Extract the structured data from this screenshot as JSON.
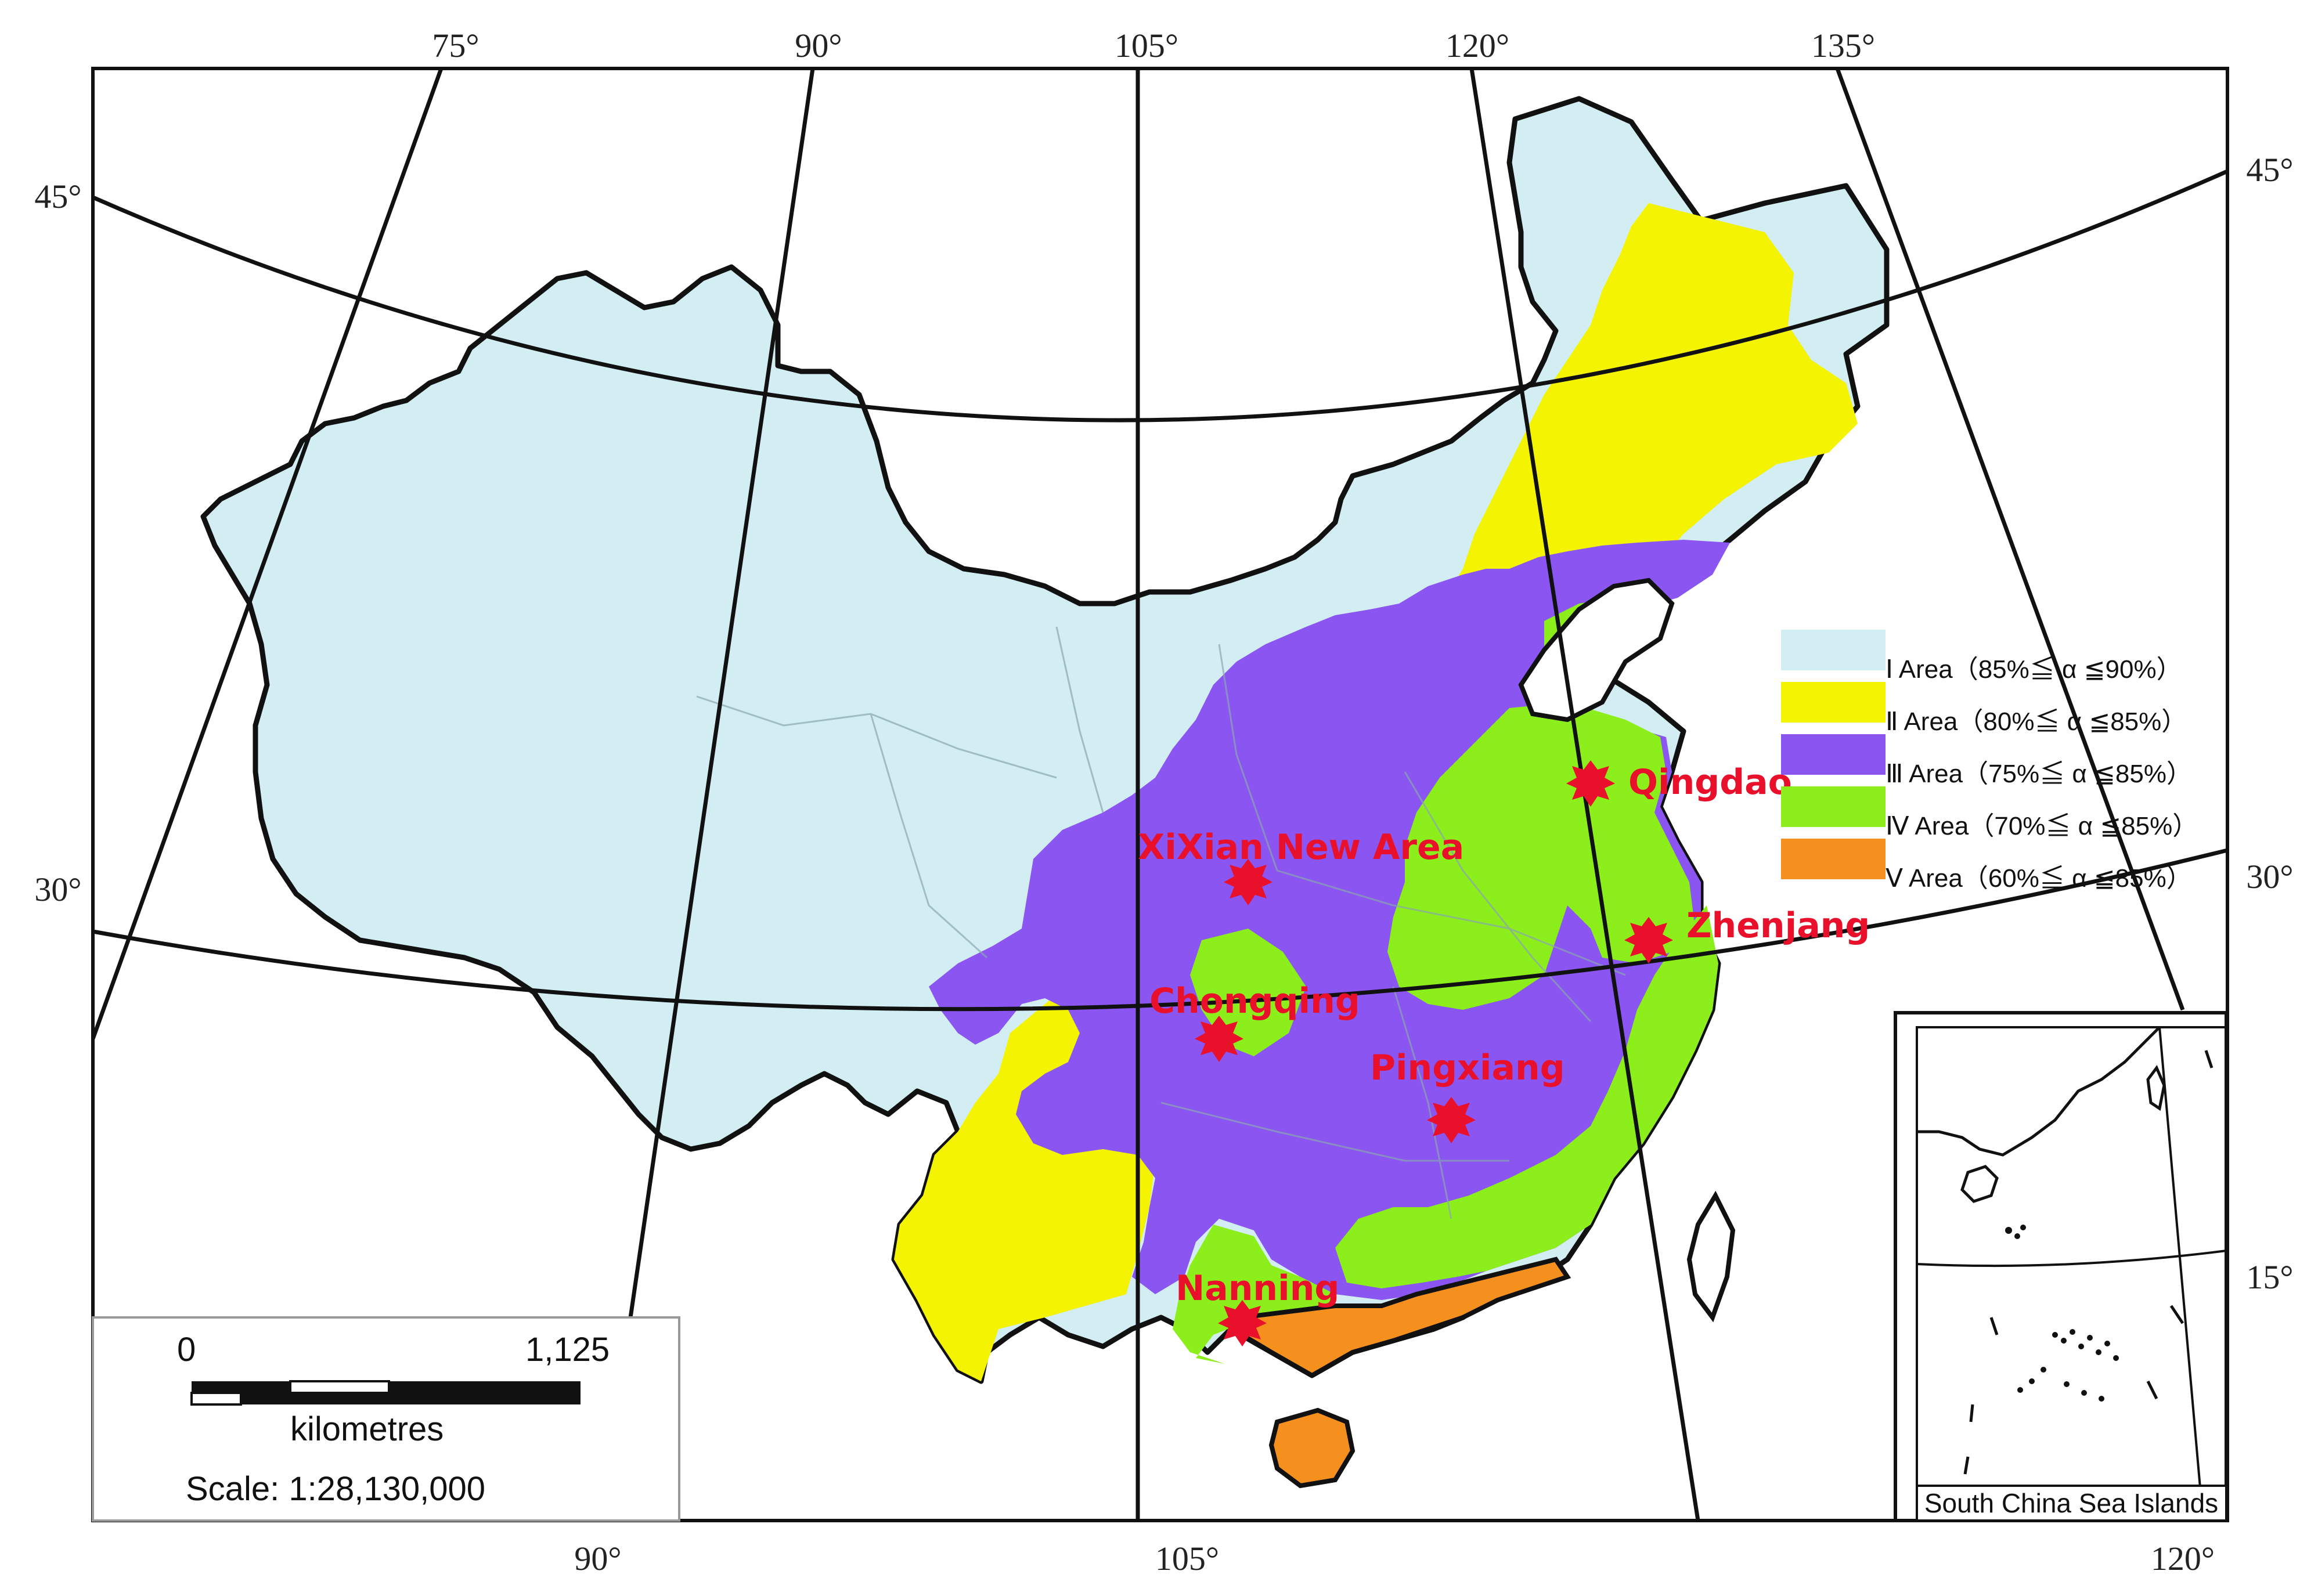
{
  "map": {
    "top_longitude_labels": [
      "75°",
      "90°",
      "105°",
      "120°",
      "135°"
    ],
    "bottom_longitude_labels": [
      "90°",
      "105°",
      "120°"
    ],
    "left_latitude_labels": [
      "45°",
      "30°"
    ],
    "right_latitude_labels": [
      "45°",
      "30°",
      "15°"
    ]
  },
  "legend": {
    "items": [
      {
        "label": "Ⅰ Area（85%≦ α ≦90%）",
        "color": "#d2eef2"
      },
      {
        "label": "Ⅱ Area（80%≦ α ≦85%）",
        "color": "#f4f400"
      },
      {
        "label": "Ⅲ Area（75%≦ α ≦85%）",
        "color": "#8a55f0"
      },
      {
        "label": "Ⅳ Area（70%≦ α ≦85%）",
        "color": "#8cee1a"
      },
      {
        "label": "Ⅴ Area（60%≦ α ≦85%）",
        "color": "#f5901f"
      }
    ]
  },
  "cities": [
    {
      "name": "Qingdao",
      "marker_color": "#e8102a"
    },
    {
      "name": "XiXian New Area",
      "marker_color": "#e8102a"
    },
    {
      "name": "Zhenjang",
      "marker_color": "#e8102a"
    },
    {
      "name": "Chongqing",
      "marker_color": "#e8102a"
    },
    {
      "name": "Pingxiang",
      "marker_color": "#e8102a"
    },
    {
      "name": "Nanning",
      "marker_color": "#e8102a"
    }
  ],
  "scale_bar": {
    "start": "0",
    "end": "1,125",
    "unit": "kilometres",
    "ratio": "Scale: 1:28,130,000"
  },
  "inset": {
    "caption": "South China Sea Islands"
  }
}
